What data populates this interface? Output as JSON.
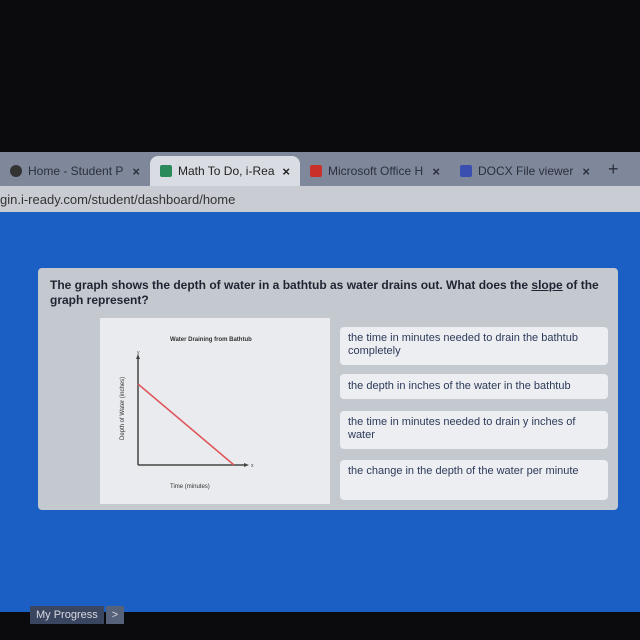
{
  "browser": {
    "tabs": [
      {
        "title": "Home - Student P",
        "icon": "globe-icon",
        "active": false
      },
      {
        "title": "Math To Do, i-Rea",
        "icon": "iready-icon",
        "active": true
      },
      {
        "title": "Microsoft Office H",
        "icon": "office-icon",
        "active": false
      },
      {
        "title": "DOCX File viewer",
        "icon": "teams-icon",
        "active": false
      }
    ],
    "close_label": "×",
    "new_tab_label": "+",
    "url": "gin.i-ready.com/student/dashboard/home"
  },
  "question": {
    "text_before": "The graph shows the depth of water in a bathtub as water drains out. What does the ",
    "slope_word": "slope",
    "text_after": " of the graph represent?",
    "graph": {
      "title": "Water Draining from Bathtub",
      "xlabel": "Time (minutes)",
      "ylabel": "Depth of Water (inches)",
      "x_axis": "x",
      "y_axis": "y",
      "line_color": "#e0555a"
    },
    "options": [
      "the time in minutes needed to drain the bathtub completely",
      "the depth in inches of the water in the bathtub",
      "the time in minutes needed to drain y inches of water",
      "the change in the depth of the water per minute"
    ]
  },
  "footer": {
    "my_progress": "My Progress",
    "arrow": ">"
  }
}
